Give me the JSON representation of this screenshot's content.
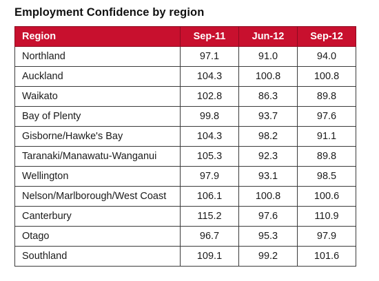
{
  "title": "Employment Confidence by region",
  "columns": [
    "Region",
    "Sep-11",
    "Jun-12",
    "Sep-12"
  ],
  "rows": [
    {
      "region": "Northland",
      "v": [
        "97.1",
        "91.0",
        "94.0"
      ]
    },
    {
      "region": "Auckland",
      "v": [
        "104.3",
        "100.8",
        "100.8"
      ]
    },
    {
      "region": "Waikato",
      "v": [
        "102.8",
        "86.3",
        "89.8"
      ]
    },
    {
      "region": "Bay of Plenty",
      "v": [
        "99.8",
        "93.7",
        "97.6"
      ]
    },
    {
      "region": "Gisborne/Hawke's Bay",
      "v": [
        "104.3",
        "98.2",
        "91.1"
      ]
    },
    {
      "region": "Taranaki/Manawatu-Wanganui",
      "v": [
        "105.3",
        "92.3",
        "89.8"
      ]
    },
    {
      "region": "Wellington",
      "v": [
        "97.9",
        "93.1",
        "98.5"
      ]
    },
    {
      "region": "Nelson/Marlborough/West Coast",
      "v": [
        "106.1",
        "100.8",
        "100.6"
      ]
    },
    {
      "region": "Canterbury",
      "v": [
        "115.2",
        "97.6",
        "110.9"
      ]
    },
    {
      "region": "Otago",
      "v": [
        "96.7",
        "95.3",
        "97.9"
      ]
    },
    {
      "region": "Southland",
      "v": [
        "109.1",
        "99.2",
        "101.6"
      ]
    }
  ],
  "colors": {
    "header_bg": "#c8102e",
    "header_text": "#ffffff",
    "border": "#3a3a3a"
  }
}
